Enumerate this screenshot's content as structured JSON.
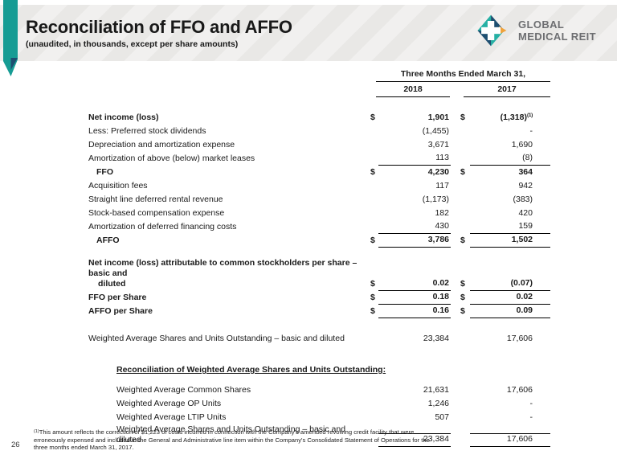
{
  "page_number": "26",
  "header": {
    "title": "Reconciliation of FFO and AFFO",
    "subtitle": "(unaudited, in thousands, except per share amounts)",
    "logo_line1": "GLOBAL",
    "logo_line2": "MEDICAL REIT"
  },
  "colors": {
    "accent_teal": "#169c94",
    "accent_navy": "#1d4e70",
    "accent_orange": "#f0a23a",
    "band_gray": "#e9e8e6",
    "logo_gray": "#6d6e71"
  },
  "table": {
    "period_header": "Three Months Ended March 31,",
    "year_cols": [
      "2018",
      "2017"
    ],
    "sections": [
      {
        "name": "ffo-affo-reconciliation",
        "rows": [
          {
            "label": "Net income (loss)",
            "bold": true,
            "dollar": true,
            "v2018": "1,901",
            "v2017": "(1,318)",
            "sup": "(1)"
          },
          {
            "label": "Less: Preferred stock dividends",
            "v2018": "(1,455)",
            "v2017": "-"
          },
          {
            "label": "Depreciation and amortization expense",
            "v2018": "3,671",
            "v2017": "1,690"
          },
          {
            "label": "Amortization of above (below) market leases",
            "v2018": "113",
            "v2017": "(8)",
            "rule": "below"
          },
          {
            "label": "FFO",
            "bold": true,
            "indent": 1,
            "dollar": true,
            "v2018": "4,230",
            "v2017": "364"
          },
          {
            "label": "Acquisition fees",
            "v2018": "117",
            "v2017": "942"
          },
          {
            "label": "Straight line deferred rental revenue",
            "v2018": "(1,173)",
            "v2017": "(383)"
          },
          {
            "label": "Stock-based compensation expense",
            "v2018": "182",
            "v2017": "420"
          },
          {
            "label": "Amortization of deferred financing costs",
            "v2018": "430",
            "v2017": "159",
            "rule": "below"
          },
          {
            "label": "AFFO",
            "bold": true,
            "indent": 1,
            "dollar": true,
            "v2018": "3,786",
            "v2017": "1,502",
            "rule": "below"
          }
        ]
      },
      {
        "name": "per-share",
        "rows": [
          {
            "label": "Net income (loss) attributable to common stockholders per share – basic and",
            "label2": "diluted",
            "bold": true,
            "dollar": true,
            "v2018": "0.02",
            "v2017": "(0.07)",
            "rule": "below"
          },
          {
            "label": "FFO per Share",
            "bold": true,
            "dollar": true,
            "v2018": "0.18",
            "v2017": "0.02",
            "rule": "below"
          },
          {
            "label": "AFFO per Share",
            "bold": true,
            "dollar": true,
            "v2018": "0.16",
            "v2017": "0.09",
            "rule": "below"
          }
        ]
      },
      {
        "name": "weighted-average",
        "rows": [
          {
            "label": "Weighted Average Shares and Units Outstanding – basic and diluted",
            "v2018": "23,384",
            "v2017": "17,606"
          }
        ]
      },
      {
        "name": "weighted-average-reconciliation",
        "heading": "Reconciliation of Weighted Average Shares and Units Outstanding:",
        "rows": [
          {
            "label": "Weighted Average Common Shares",
            "indent": 2,
            "v2018": "21,631",
            "v2017": "17,606"
          },
          {
            "label": "Weighted Average OP Units",
            "indent": 2,
            "v2018": "1,246",
            "v2017": "-"
          },
          {
            "label": "Weighted Average LTIP Units",
            "indent": 2,
            "v2018": "507",
            "v2017": "-"
          },
          {
            "label": "Weighted Average Shares and Units Outstanding – basic and diluted",
            "indent": 2,
            "v2018": "23,384",
            "v2017": "17,606",
            "rule": "above-below"
          }
        ]
      }
    ]
  },
  "footnote": {
    "marker": "(1)",
    "text": "This amount reflects the correction of $1,223 of costs incurred in connection with the Company's amended revolving credit facility that were erroneously expensed and included in the General and Administrative line item within the Company's Consolidated Statement of Operations for the three months ended March 31, 2017."
  }
}
